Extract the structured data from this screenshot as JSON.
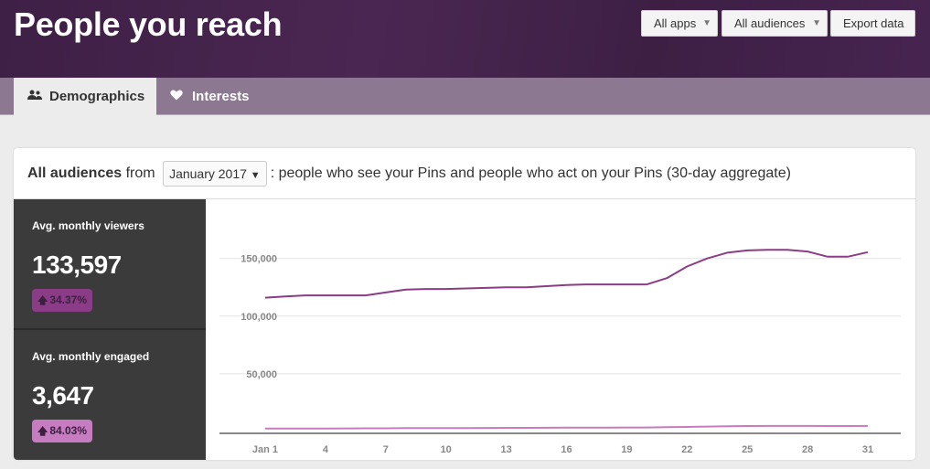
{
  "header": {
    "title": "People you reach",
    "buttons": {
      "apps": "All apps",
      "audiences": "All audiences",
      "export": "Export data"
    }
  },
  "tabs": [
    {
      "label": "Demographics",
      "icon": "users-icon",
      "active": true
    },
    {
      "label": "Interests",
      "icon": "heart-icon",
      "active": false
    }
  ],
  "card": {
    "prefix": "All audiences",
    "from": "from",
    "month": "January 2017",
    "suffix": ": people who see your Pins and people who act on your Pins (30-day aggregate)"
  },
  "metrics": [
    {
      "label": "Avg. monthly viewers",
      "value": "133,597",
      "change": "34.37%",
      "color": "#8a3d86"
    },
    {
      "label": "Avg. monthly engaged",
      "value": "3,647",
      "change": "84.03%",
      "color": "#c77bc1"
    }
  ],
  "chart_data": {
    "type": "line",
    "x": [
      1,
      2,
      3,
      4,
      5,
      6,
      7,
      8,
      9,
      10,
      11,
      12,
      13,
      14,
      15,
      16,
      17,
      18,
      19,
      20,
      21,
      22,
      23,
      24,
      25,
      26,
      27,
      28,
      29,
      30,
      31
    ],
    "xticks": [
      1,
      4,
      7,
      10,
      13,
      16,
      19,
      22,
      25,
      28,
      31
    ],
    "xtick_labels": [
      "Jan 1",
      "4",
      "7",
      "10",
      "13",
      "16",
      "19",
      "22",
      "25",
      "28",
      "31"
    ],
    "yticks": [
      50000,
      100000,
      150000
    ],
    "ytick_labels": [
      "50,000",
      "100,000",
      "150,000"
    ],
    "ylim": [
      0,
      165000
    ],
    "grid": true,
    "series": [
      {
        "color": "#8a3d86",
        "values": [
          116000,
          117000,
          118000,
          118000,
          118000,
          118000,
          120500,
          123000,
          123500,
          123500,
          124000,
          124500,
          125000,
          125000,
          126000,
          127000,
          127500,
          127500,
          127500,
          127500,
          133000,
          143000,
          150000,
          155000,
          157000,
          157500,
          157500,
          156000,
          151500,
          151500,
          155500
        ]
      },
      {
        "color": "#c77bc1",
        "values": [
          2500,
          2550,
          2600,
          2650,
          2700,
          2750,
          2800,
          2900,
          2950,
          3000,
          3050,
          3100,
          3150,
          3200,
          3250,
          3300,
          3350,
          3400,
          3450,
          3500,
          3700,
          4000,
          4300,
          4600,
          4750,
          4800,
          4800,
          4800,
          4750,
          4750,
          4850
        ]
      }
    ]
  }
}
